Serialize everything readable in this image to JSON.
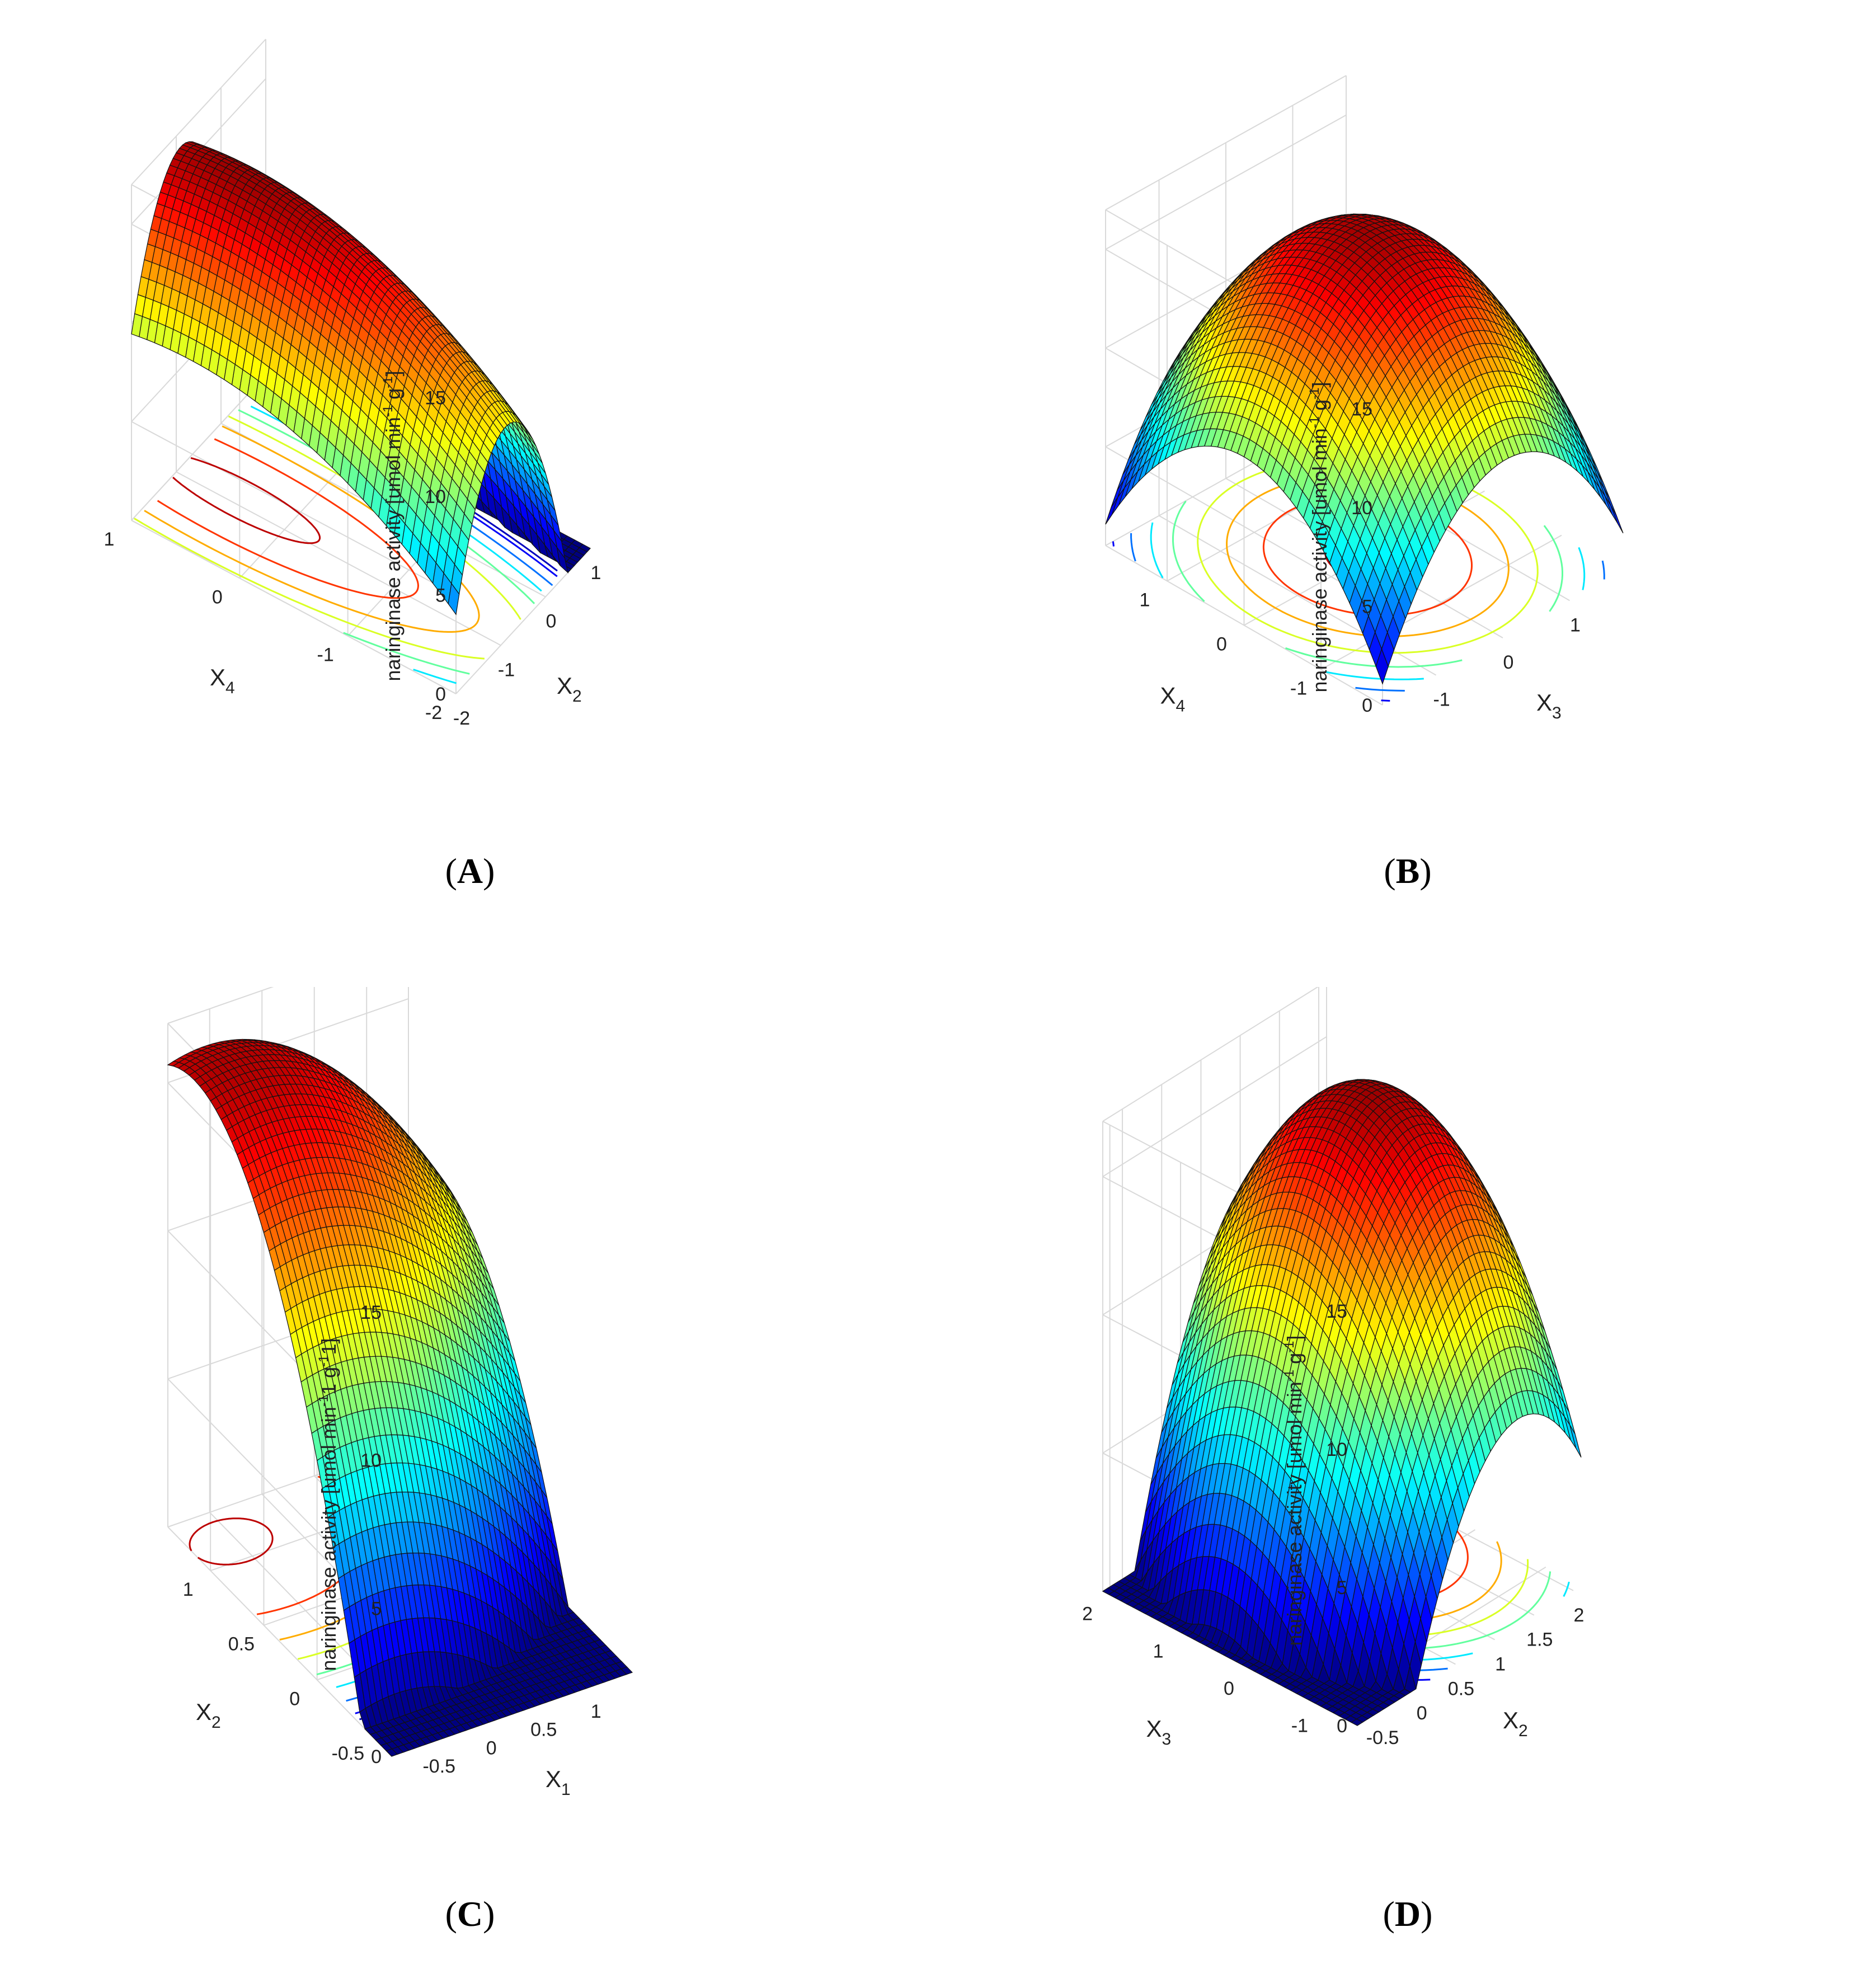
{
  "figure": {
    "colormap": "jet",
    "mesh_color": "#111111",
    "grid_color": "#d9d9d9"
  },
  "chart_data": [
    {
      "type": "surface",
      "panel": "A",
      "panel_label": "A",
      "zlabel": "naringinase activity  [umol min",
      "zlabel_sup1": "-1",
      "zlabel_mid": " g",
      "zlabel_sup2": "-1",
      "zlabel_end": "]",
      "xlabel": "X",
      "xlabel_sub": "2",
      "ylabel": "X",
      "ylabel_sub": "4",
      "xlim": [
        -2,
        1
      ],
      "ylim": [
        -2,
        1
      ],
      "zlim": [
        0,
        17
      ],
      "xticks": [
        "-2",
        "-1",
        "0",
        "1"
      ],
      "yticks": [
        "-2",
        "-1",
        "0",
        "1"
      ],
      "zticks": [
        "0",
        "5",
        "10",
        "15"
      ],
      "model": {
        "c": 16.5,
        "x0": -0.9,
        "y0": 0.45,
        "a": 5.6,
        "b": 0.95
      },
      "contour_levels": [
        1,
        2,
        4,
        6,
        8,
        10,
        12,
        14,
        16
      ]
    },
    {
      "type": "surface",
      "panel": "B",
      "panel_label": "B",
      "zlabel": "naringinase activity [umol min",
      "zlabel_sup1": "-1",
      "zlabel_mid": " g",
      "zlabel_sup2": "-1",
      "zlabel_end": "]",
      "xlabel": "X",
      "xlabel_sub": "3",
      "ylabel": "X",
      "ylabel_sub": "4",
      "xlim": [
        -1.8,
        1.8
      ],
      "ylim": [
        -1.8,
        1.8
      ],
      "zlim": [
        0,
        17
      ],
      "xticks": [
        "-1",
        "0",
        "1"
      ],
      "yticks": [
        "-1",
        "0",
        "1"
      ],
      "zticks": [
        "0",
        "5",
        "10",
        "15"
      ],
      "model": {
        "c": 16.4,
        "x0": 0.05,
        "y0": 0.0,
        "a": 2.3,
        "b": 2.3
      },
      "contour_levels": [
        1,
        2,
        4,
        6,
        8,
        10,
        12,
        14,
        16
      ]
    },
    {
      "type": "surface",
      "panel": "C",
      "panel_label": "C",
      "zlabel": "naringinase activity [umol min",
      "zlabel_sup1": "-1",
      "zlabel_mid": "1 g",
      "zlabel_sup2": "-1",
      "zlabel_end": "1]",
      "xlabel": "X",
      "xlabel_sub": "1",
      "ylabel": "X",
      "ylabel_sub": "2",
      "xlim": [
        -0.9,
        1.4
      ],
      "ylim": [
        -0.7,
        1.4
      ],
      "zlim": [
        0,
        17
      ],
      "xticks": [
        "-0.5",
        "0",
        "0.5",
        "1"
      ],
      "yticks": [
        "-0.5",
        "0",
        "0.5",
        "1"
      ],
      "zticks": [
        "0",
        "5",
        "10",
        "15"
      ],
      "model": {
        "c": 16.2,
        "x0": -0.55,
        "y0": 1.15,
        "a": 1.6,
        "b": 6.5
      },
      "contour_levels": [
        1,
        2,
        4,
        6,
        8,
        10,
        12,
        14,
        16
      ]
    },
    {
      "type": "surface",
      "panel": "D",
      "panel_label": "D",
      "zlabel": "naringinase activity [umol min",
      "zlabel_sup1": "-1",
      "zlabel_mid": " g",
      "zlabel_sup2": "-1",
      "zlabel_end": "]",
      "xlabel": "X",
      "xlabel_sub": "2",
      "ylabel": "X",
      "ylabel_sub": "3",
      "xlim": [
        -0.75,
        2.1
      ],
      "ylim": [
        -1.5,
        2.1
      ],
      "zlim": [
        0,
        17
      ],
      "xticks": [
        "-0.5",
        "0",
        "0.5",
        "1",
        "1.5",
        "2"
      ],
      "yticks": [
        "-1",
        "0",
        "1",
        "2"
      ],
      "zticks": [
        "0",
        "5",
        "10",
        "15"
      ],
      "model": {
        "c": 16.5,
        "x0": 1.3,
        "y0": 0.6,
        "a": 4.4,
        "b": 2.05
      },
      "contour_levels": [
        1,
        2,
        4,
        6,
        8,
        10,
        12,
        14,
        16
      ]
    }
  ]
}
